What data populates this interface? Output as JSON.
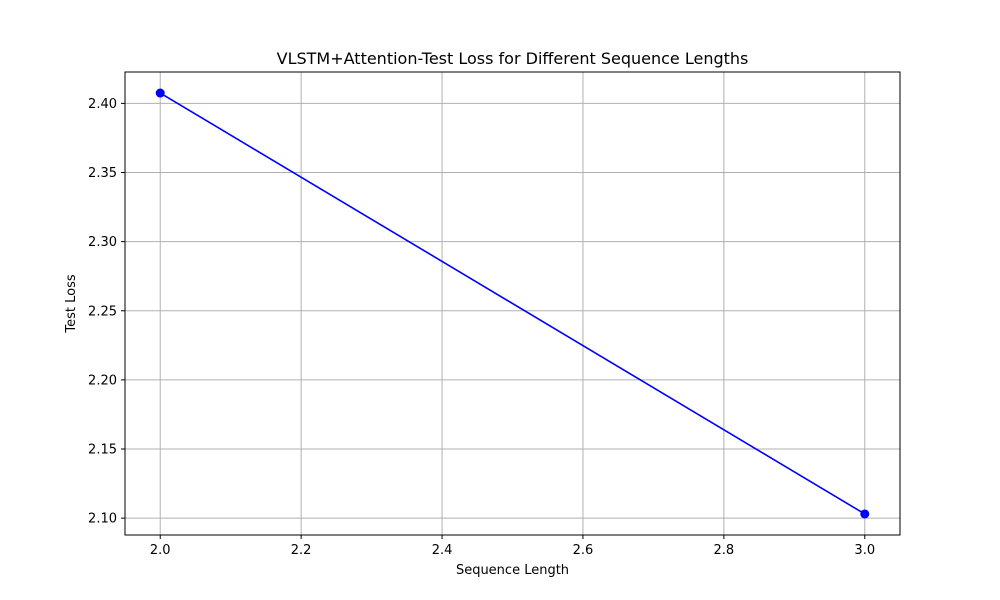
{
  "chart_data": {
    "type": "line",
    "title": "VLSTM+Attention-Test Loss for Different Sequence Lengths",
    "xlabel": "Sequence Length",
    "ylabel": "Test Loss",
    "x": [
      2.0,
      3.0
    ],
    "series": [
      {
        "values": [
          2.4075,
          2.103
        ],
        "color": "#0000ff",
        "marker": "circle"
      }
    ],
    "xlim": [
      1.95,
      3.05
    ],
    "ylim": [
      2.0878,
      2.4227
    ],
    "xticks": [
      2.0,
      2.2,
      2.4,
      2.6,
      2.8,
      3.0
    ],
    "xtick_labels": [
      "2.0",
      "2.2",
      "2.4",
      "2.6",
      "2.8",
      "3.0"
    ],
    "yticks": [
      2.1,
      2.15,
      2.2,
      2.25,
      2.3,
      2.35,
      2.4
    ],
    "ytick_labels": [
      "2.10",
      "2.15",
      "2.20",
      "2.25",
      "2.30",
      "2.35",
      "2.40"
    ],
    "grid": true,
    "grid_color": "#b0b0b0",
    "legend": "none"
  }
}
